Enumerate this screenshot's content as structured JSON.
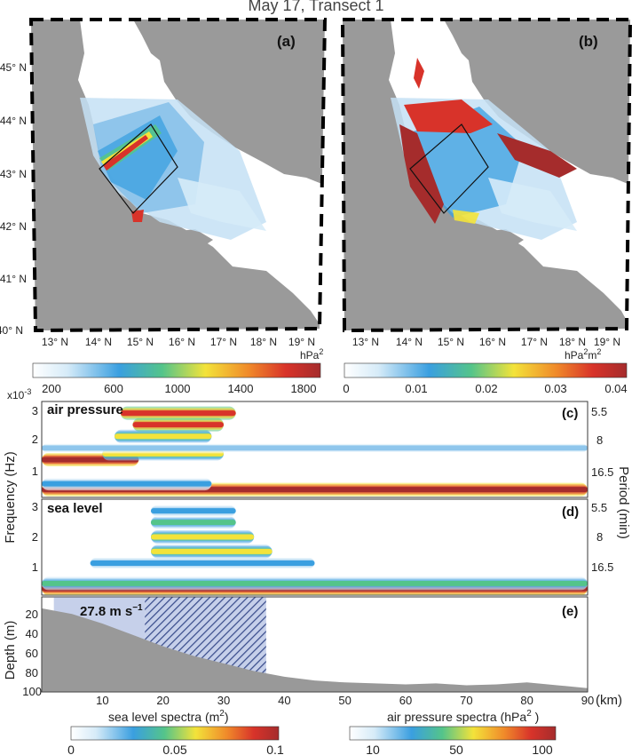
{
  "figure": {
    "title": "May 17, Transect 1"
  },
  "colors": {
    "land": "#9a9a9a",
    "sea": "#ffffff",
    "transect": "#111111",
    "bathymetry": "#999999",
    "jet": [
      "#ffffff",
      "#d6ebf8",
      "#8fc6ec",
      "#3a9fe0",
      "#54c48a",
      "#f3e33a",
      "#f08a2a",
      "#d8332a",
      "#a52c2c"
    ]
  },
  "panels": {
    "a": {
      "label": "(a)",
      "colorbar_unit": "hPa",
      "colorbar_unit_sup": "2",
      "colorbar_ticks": [
        "200",
        "600",
        "1000",
        "1400",
        "1800"
      ]
    },
    "b": {
      "label": "(b)",
      "colorbar_unit": "hPa",
      "colorbar_unit_sup": "2",
      "colorbar_unit2": "m",
      "colorbar_unit2_sup": "2",
      "colorbar_ticks": [
        "0",
        "0.01",
        "0.02",
        "0.03",
        "0.04"
      ]
    },
    "c": {
      "label": "(c)",
      "name": "air pressure"
    },
    "d": {
      "label": "(d)",
      "name": "sea level"
    },
    "e": {
      "label": "(e)",
      "wind_text": "27.8 m s",
      "wind_sup": "−1"
    }
  },
  "maps": {
    "lat_ticks": [
      "45° N",
      "44° N",
      "43° N",
      "42° N",
      "41° N",
      "40° N"
    ],
    "lon_ticks_a": [
      "13° N",
      "14° N",
      "15° N",
      "16° N",
      "17° N",
      "18° N",
      "19° N"
    ],
    "lon_ticks_b": [
      "13° N",
      "14° N",
      "15° N",
      "16° N",
      "17° N",
      "18° N",
      "19° N"
    ]
  },
  "axes": {
    "frequency_label": "Frequency (Hz)",
    "frequency_multiplier": "x10",
    "frequency_multiplier_sup": "-3",
    "frequency_ticks_c": [
      "3",
      "2",
      "1"
    ],
    "frequency_ticks_d": [
      "3",
      "2",
      "1"
    ],
    "period_label": "Period (min)",
    "period_ticks_c": [
      "5.5",
      "8",
      "16.5"
    ],
    "period_ticks_d": [
      "5.5",
      "8",
      "16.5"
    ],
    "depth_label": "Depth (m)",
    "depth_ticks": [
      "20",
      "40",
      "60",
      "80",
      "100"
    ],
    "distance_ticks": [
      "10",
      "20",
      "30",
      "40",
      "50",
      "60",
      "70",
      "80",
      "90"
    ],
    "distance_unit": "(km)"
  },
  "bottom_colorbars": {
    "sea_level": {
      "label": "sea level spectra (m",
      "sup": "2",
      "close": ")",
      "ticks": [
        "0",
        "0.05",
        "0.1"
      ]
    },
    "air_pressure": {
      "label": "air pressure spectra (hPa",
      "sup": "2",
      "close": " )",
      "ticks": [
        "10",
        "50",
        "100"
      ]
    }
  },
  "chart_data": [
    {
      "type": "heatmap",
      "title": "air pressure",
      "xlabel": "",
      "ylabel": "Frequency (Hz)",
      "xlim": [
        0,
        90
      ],
      "ylim": [
        0.0,
        0.0033
      ],
      "bands": [
        {
          "f": 0.00027,
          "x0": 0,
          "x1": 90,
          "level": 8
        },
        {
          "f": 0.00047,
          "x0": 0,
          "x1": 28,
          "level": 3
        },
        {
          "f": 0.0013,
          "x0": 0,
          "x1": 16,
          "level": 8
        },
        {
          "f": 0.0015,
          "x0": 10,
          "x1": 30,
          "level": 5
        },
        {
          "f": 0.0021,
          "x0": 12,
          "x1": 28,
          "level": 5
        },
        {
          "f": 0.0025,
          "x0": 15,
          "x1": 30,
          "level": 7
        },
        {
          "f": 0.0029,
          "x0": 13,
          "x1": 32,
          "level": 7
        },
        {
          "f": 0.0017,
          "x0": 0,
          "x1": 90,
          "level": 2
        }
      ]
    },
    {
      "type": "heatmap",
      "title": "sea level",
      "xlabel": "",
      "ylabel": "Frequency (Hz)",
      "xlim": [
        0,
        90
      ],
      "ylim": [
        0.0,
        0.0033
      ],
      "bands": [
        {
          "f": 0.00022,
          "x0": 0,
          "x1": 90,
          "level": 8
        },
        {
          "f": 0.0004,
          "x0": 0,
          "x1": 90,
          "level": 4
        },
        {
          "f": 0.0011,
          "x0": 8,
          "x1": 45,
          "level": 3
        },
        {
          "f": 0.0015,
          "x0": 18,
          "x1": 38,
          "level": 5
        },
        {
          "f": 0.002,
          "x0": 18,
          "x1": 35,
          "level": 5
        },
        {
          "f": 0.0025,
          "x0": 18,
          "x1": 32,
          "level": 4
        },
        {
          "f": 0.0029,
          "x0": 18,
          "x1": 32,
          "level": 3
        }
      ]
    },
    {
      "type": "area",
      "title": "",
      "xlabel": "",
      "ylabel": "Depth (m)",
      "xlim": [
        0,
        90
      ],
      "ylim": [
        0,
        100
      ],
      "x": [
        0,
        5,
        10,
        15,
        20,
        25,
        30,
        35,
        40,
        45,
        50,
        55,
        60,
        65,
        70,
        75,
        80,
        85,
        90
      ],
      "depth": [
        12,
        18,
        28,
        40,
        52,
        62,
        70,
        78,
        84,
        88,
        90,
        91,
        92,
        91,
        93,
        92,
        90,
        93,
        96
      ],
      "wind_speed": 27.8,
      "highlight_range_km": [
        2,
        17
      ],
      "hatched_range_km": [
        17,
        37
      ]
    }
  ]
}
